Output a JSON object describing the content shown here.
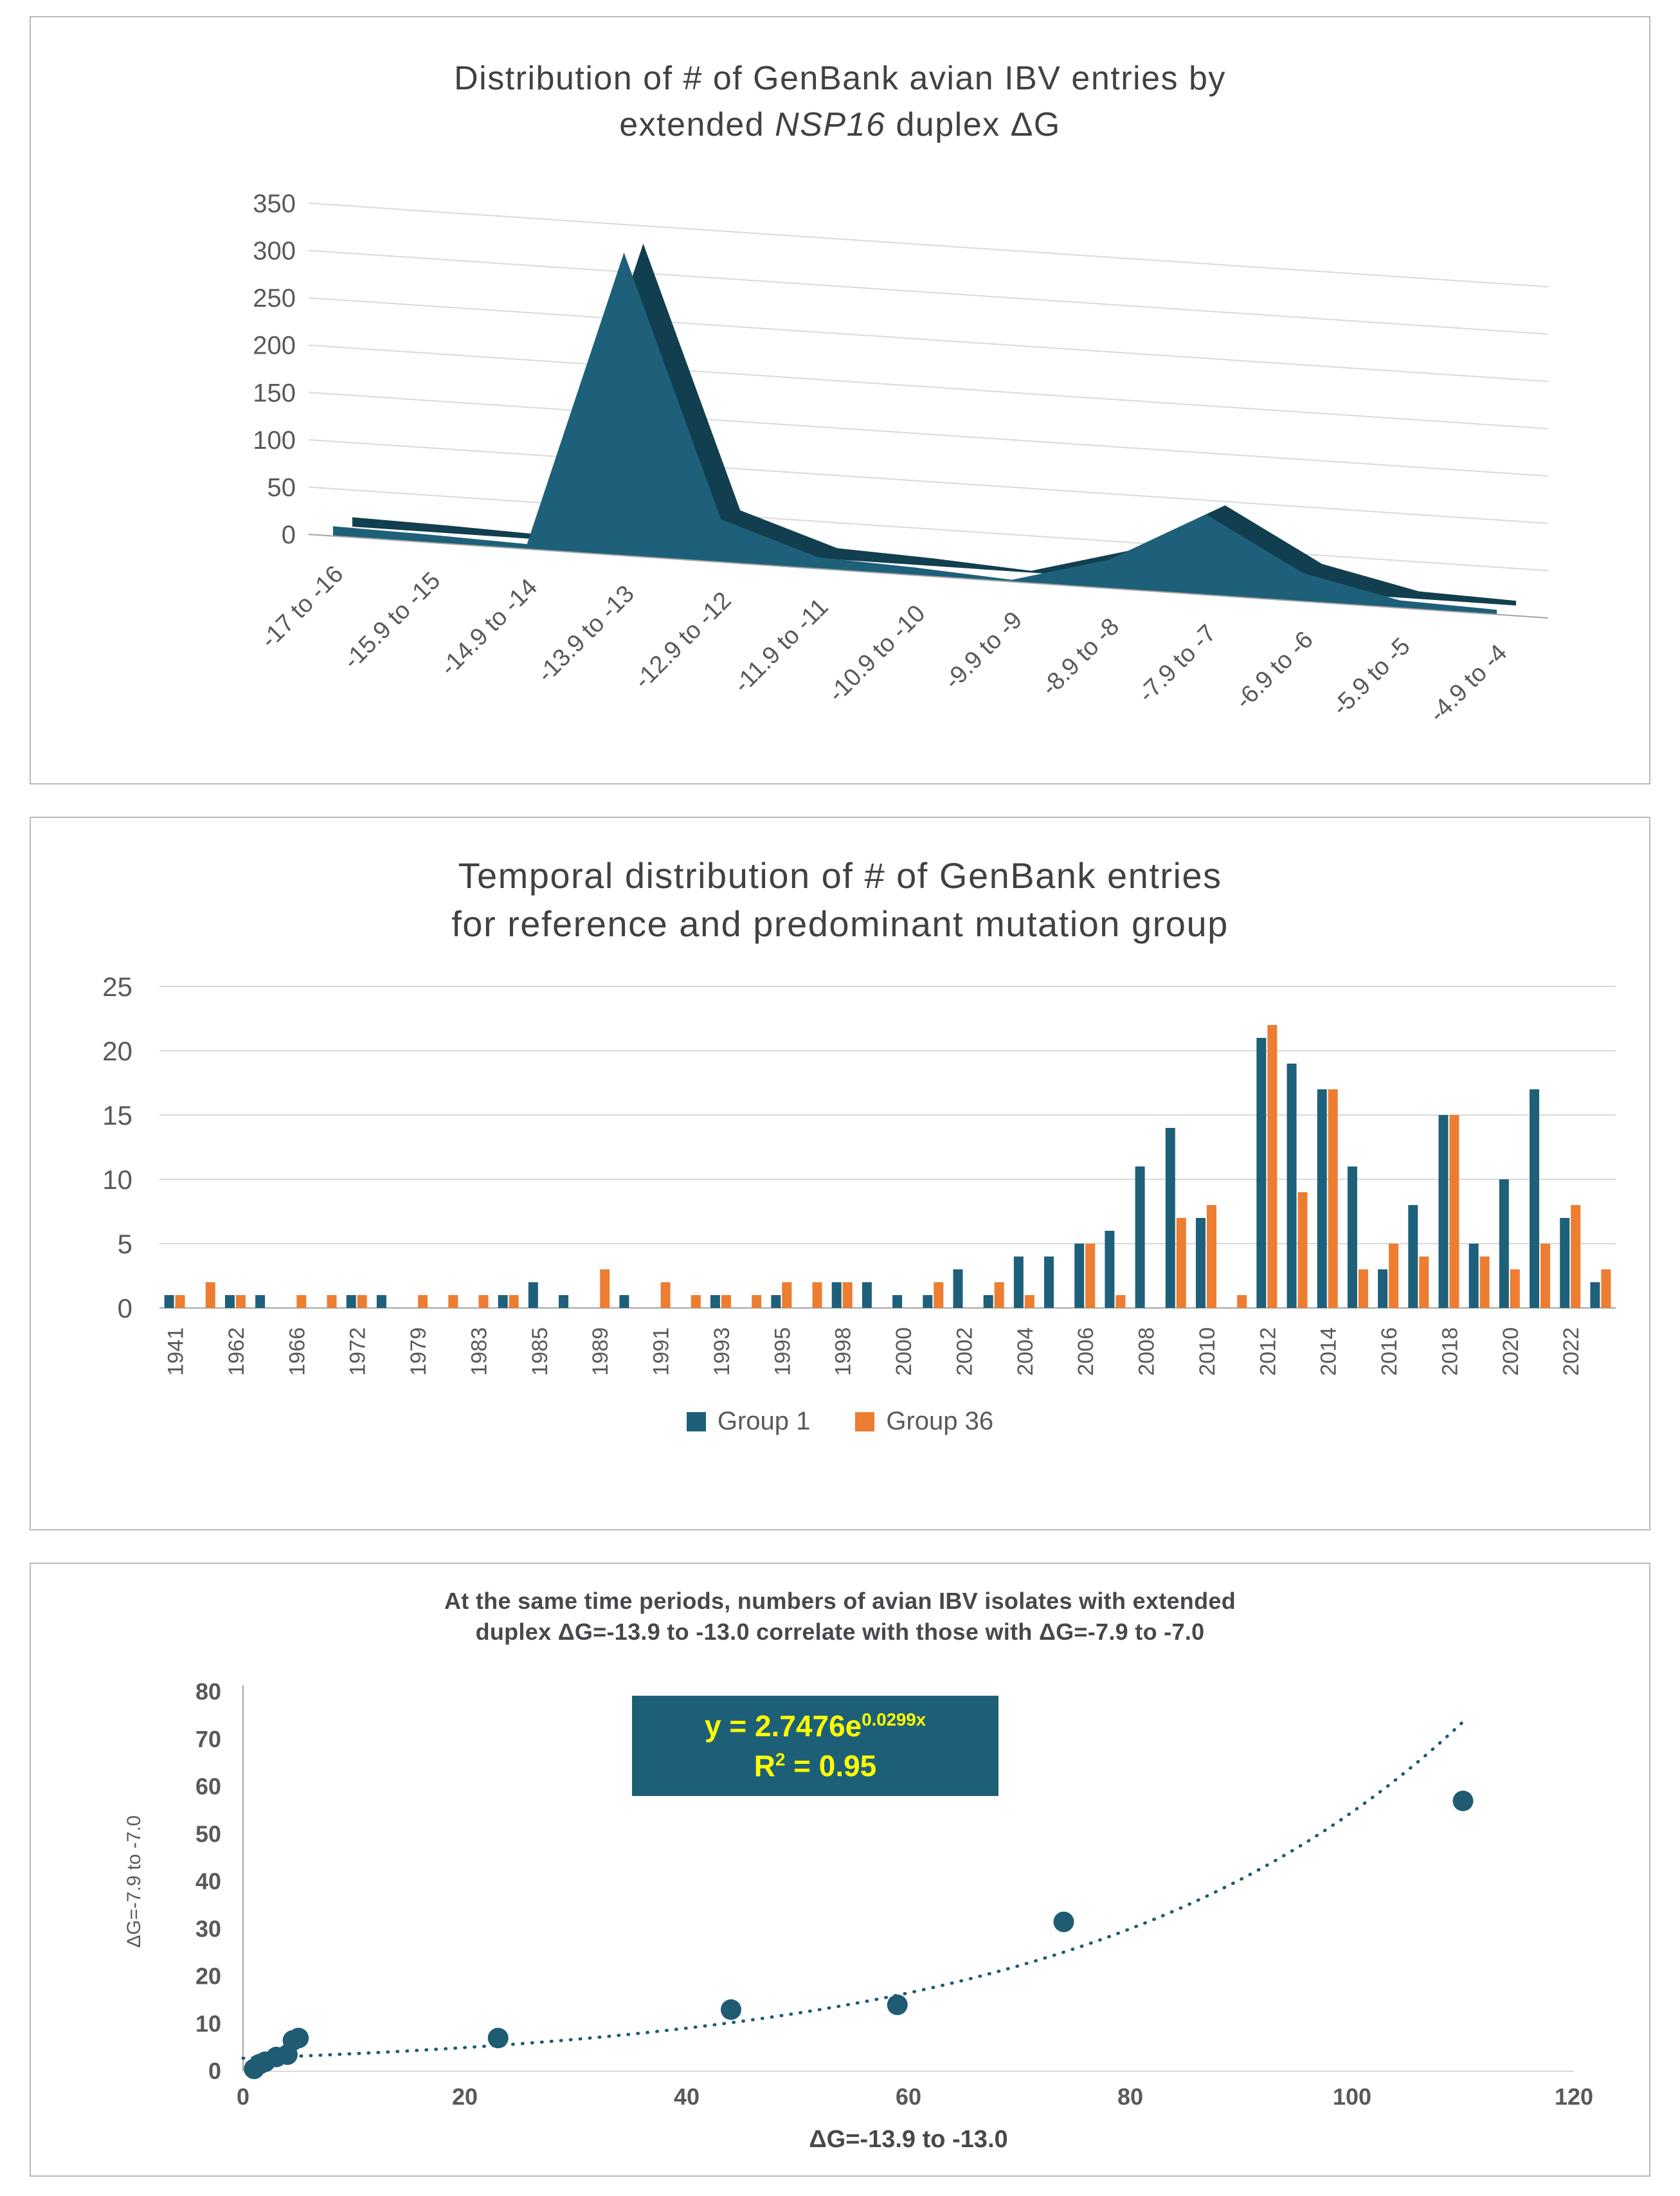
{
  "colors": {
    "series_teal": "#1E607A",
    "series_teal_dark": "#123F50",
    "series_orange": "#ED7D31",
    "grid": "#D9D9D9",
    "axis_line": "#A6A6A6",
    "axis_text": "#595959",
    "title_text": "#3F4145",
    "scatter_point": "#1F5C73",
    "equation_bg": "#1E5F78",
    "equation_text": "#FFFF00",
    "panel_border": "#B7BABD"
  },
  "chart_data": [
    {
      "type": "area",
      "style": "3d",
      "title": "Distribution of # of GenBank avian IBV entries by extended NSP16 duplex ΔG",
      "title_line1": "Distribution of # of GenBank avian IBV entries by",
      "title_line2_pre": "extended ",
      "title_line2_italic": "NSP16",
      "title_line2_post": " duplex ΔG",
      "categories": [
        "-17 to -16",
        "-15.9 to -15",
        "-14.9 to -14",
        "-13.9 to -13",
        "-12.9 to -12",
        "-11.9 to -11",
        "-10.9 to -10",
        "-9.9 to -9",
        "-8.9 to -8",
        "-7.9 to -7",
        "-6.9 to -6",
        "-5.9 to -5",
        "-4.9 to -4"
      ],
      "values": [
        10,
        8,
        5,
        320,
        45,
        12,
        8,
        2,
        30,
        85,
        30,
        8,
        5
      ],
      "ylim": [
        0,
        350
      ],
      "y_ticks": [
        0,
        50,
        100,
        150,
        200,
        250,
        300,
        350
      ],
      "grid": true,
      "legend": "none"
    },
    {
      "type": "bar",
      "title": "Temporal distribution of # of GenBank entries for reference and predominant mutation group",
      "title_line1": "Temporal distribution of # of GenBank entries",
      "title_line2": "for reference and predominant mutation group",
      "categories": [
        "1941",
        "",
        "1962",
        "",
        "1966",
        "",
        "1972",
        "",
        "1979",
        "",
        "1983",
        "",
        "1985",
        "",
        "1989",
        "",
        "1991",
        "",
        "1993",
        "",
        "1995",
        "",
        "1998",
        "",
        "2000",
        "",
        "2002",
        "",
        "2004",
        "",
        "2006",
        "",
        "2008",
        "",
        "2010",
        "",
        "2012",
        "",
        "2014",
        "",
        "2016",
        "",
        "2018",
        "",
        "2020",
        "",
        "2022",
        ""
      ],
      "series": [
        {
          "name": "Group 1",
          "color": "#1E607A",
          "values": [
            1,
            0,
            1,
            1,
            0,
            0,
            1,
            1,
            0,
            0,
            0,
            1,
            2,
            1,
            0,
            1,
            0,
            0,
            1,
            0,
            1,
            0,
            2,
            2,
            1,
            1,
            3,
            1,
            4,
            4,
            5,
            6,
            11,
            14,
            7,
            0,
            21,
            19,
            17,
            11,
            3,
            8,
            15,
            5,
            10,
            17,
            7,
            2
          ]
        },
        {
          "name": "Group 36",
          "color": "#ED7D31",
          "values": [
            1,
            2,
            1,
            0,
            1,
            1,
            1,
            0,
            1,
            1,
            1,
            1,
            0,
            0,
            3,
            0,
            2,
            1,
            1,
            1,
            2,
            2,
            2,
            0,
            0,
            2,
            0,
            2,
            1,
            0,
            5,
            1,
            0,
            7,
            8,
            1,
            22,
            9,
            17,
            3,
            5,
            4,
            15,
            4,
            3,
            5,
            8,
            3
          ]
        }
      ],
      "ylim": [
        0,
        25
      ],
      "y_ticks": [
        0,
        5,
        10,
        15,
        20,
        25
      ],
      "grid": true,
      "legend_position": "bottom"
    },
    {
      "type": "scatter",
      "title": "At the same time periods, numbers of avian IBV isolates with extended duplex ΔG=-13.9 to -13.0 correlate with those with ΔG=-7.9 to -7.0",
      "title_line1": "At the same time periods, numbers of avian IBV isolates with extended",
      "title_line2": "duplex ΔG=-13.9 to -13.0 correlate with those with ΔG=-7.9 to -7.0",
      "points": [
        [
          1,
          0.5
        ],
        [
          1.5,
          1.5
        ],
        [
          2,
          2
        ],
        [
          3,
          3
        ],
        [
          4,
          3.5
        ],
        [
          4.5,
          6.5
        ],
        [
          5,
          7
        ],
        [
          23,
          7
        ],
        [
          44,
          13
        ],
        [
          59,
          14
        ],
        [
          74,
          31.5
        ],
        [
          110,
          57
        ]
      ],
      "trendline": {
        "type": "exponential",
        "a": 2.7476,
        "b": 0.0299,
        "style": "dotted",
        "x_max": 110
      },
      "equation": {
        "base": "y = 2.7476e",
        "exponent": "0.0299x",
        "r2_base": "R",
        "r2_sup": "2",
        "r2_rest": " = 0.95"
      },
      "xlabel": "ΔG=-13.9 to -13.0",
      "ylabel": "ΔG=-7.9 to -7.0",
      "xlim": [
        0,
        120
      ],
      "x_ticks": [
        0,
        20,
        40,
        60,
        80,
        100,
        120
      ],
      "ylim": [
        0,
        80
      ],
      "y_ticks": [
        0,
        10,
        20,
        30,
        40,
        50,
        60,
        70,
        80
      ],
      "grid": false,
      "legend": "none"
    }
  ]
}
